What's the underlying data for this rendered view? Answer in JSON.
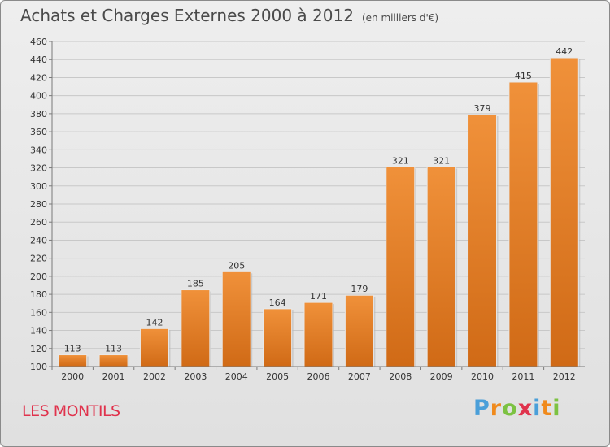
{
  "title": "Achats et Charges Externes 2000 à 2012",
  "subtitle": "(en milliers d'€)",
  "commune": "LES MONTILS",
  "logo": {
    "letters": [
      "P",
      "r",
      "o",
      "x",
      "i",
      "t",
      "i"
    ],
    "colors": [
      "#4a9fd9",
      "#f08a1c",
      "#7cc242",
      "#e0334d",
      "#4a9fd9",
      "#f08a1c",
      "#7cc242"
    ]
  },
  "colors": {
    "bar": "#f0913a",
    "bar_dark": "#d06a16"
  },
  "chart_data": {
    "type": "bar",
    "title": "Achats et Charges Externes 2000 à 2012",
    "subtitle": "(en milliers d'€)",
    "categories": [
      "2000",
      "2001",
      "2002",
      "2003",
      "2004",
      "2005",
      "2006",
      "2007",
      "2008",
      "2009",
      "2010",
      "2011",
      "2012"
    ],
    "values": [
      113,
      113,
      142,
      185,
      205,
      164,
      171,
      179,
      321,
      321,
      379,
      415,
      442
    ],
    "ylim": [
      100,
      460
    ],
    "yticks": [
      100,
      120,
      140,
      160,
      180,
      200,
      220,
      240,
      260,
      280,
      300,
      320,
      340,
      360,
      380,
      400,
      420,
      440,
      460
    ],
    "grid": true,
    "legend": "none"
  }
}
